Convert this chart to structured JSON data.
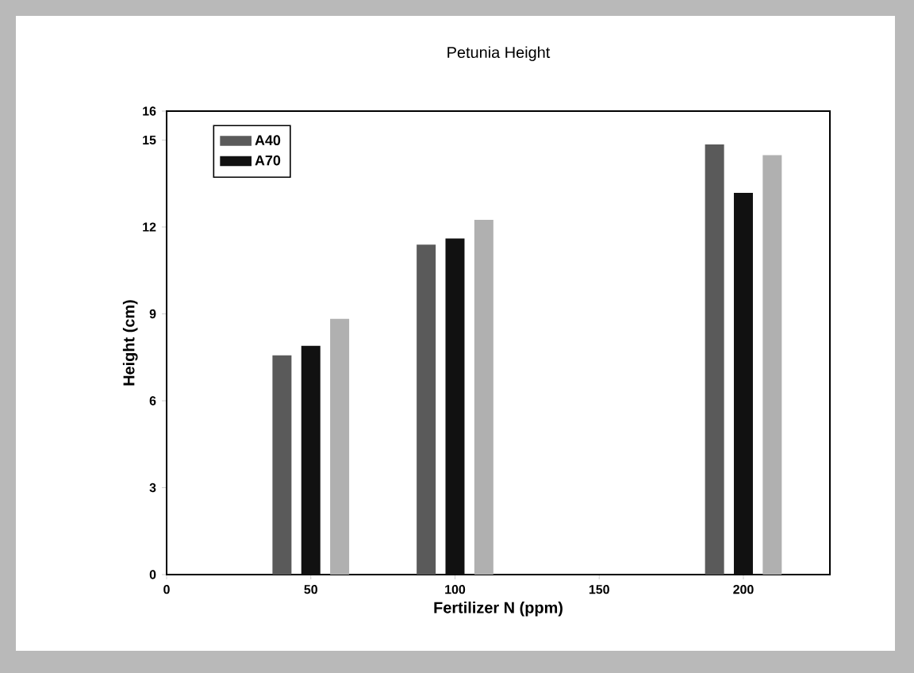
{
  "chart_data": {
    "type": "bar",
    "title": "Petunia Height",
    "xlabel": "Fertilizer N (ppm)",
    "ylabel": "Height (cm)",
    "x": [
      50,
      100,
      200
    ],
    "series": [
      {
        "name": "A40",
        "color": "#5a5a5a",
        "values": [
          7.57,
          11.39,
          14.85
        ]
      },
      {
        "name": "A70",
        "color": "#111111",
        "values": [
          7.9,
          11.6,
          13.18
        ]
      },
      {
        "color": "#b0b0b0",
        "values": [
          8.83,
          12.25,
          14.48
        ]
      }
    ],
    "xlim": [
      0,
      230
    ],
    "xticks": [
      0,
      50,
      100,
      150,
      200
    ],
    "ylim": [
      0,
      16
    ],
    "yticks": [
      0,
      3,
      6,
      9,
      12,
      15,
      16
    ],
    "legend": "top left",
    "grid": false
  }
}
